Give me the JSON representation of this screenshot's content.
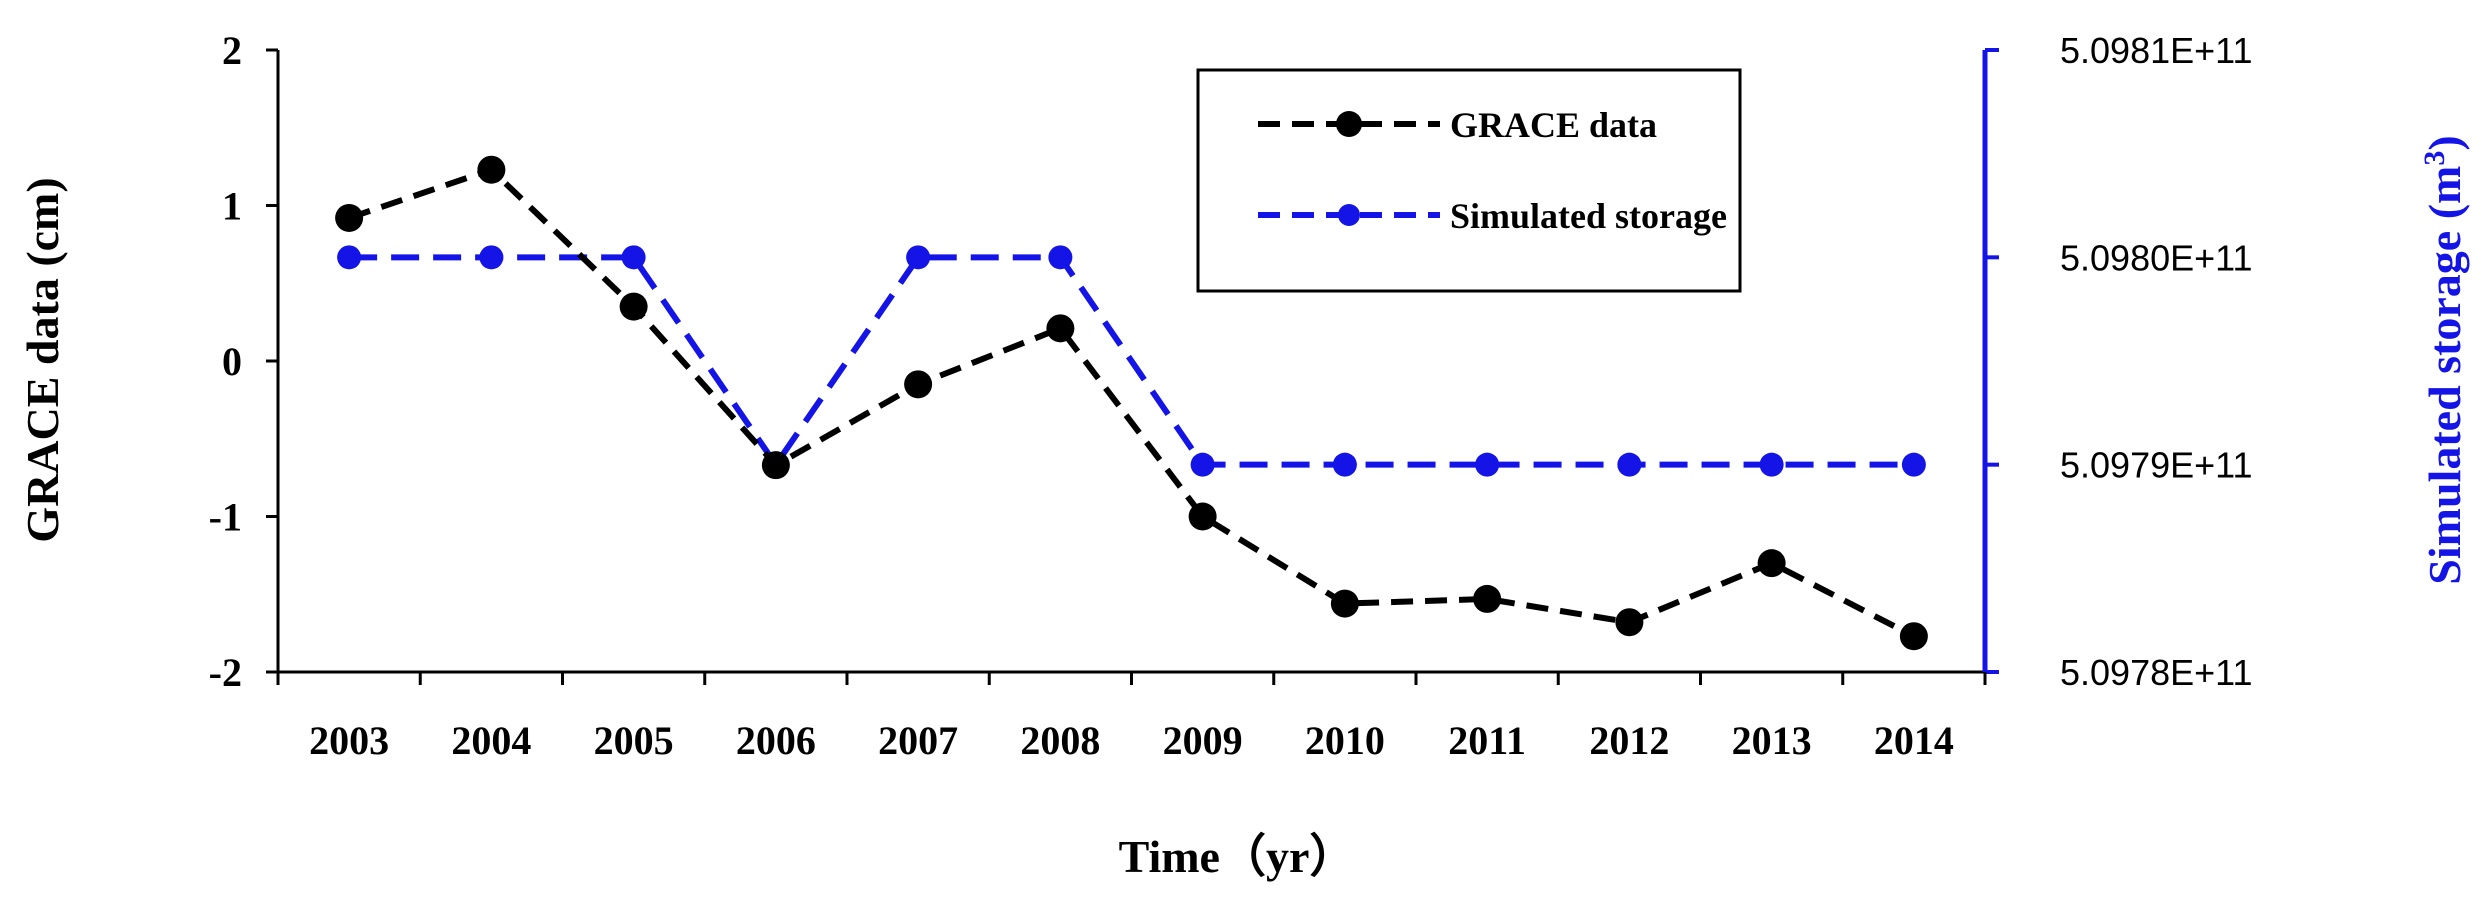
{
  "chart_data": {
    "type": "line",
    "title": "",
    "xlabel": "Time（yr）",
    "ylabel_left": "GRACE data (cm)",
    "ylabel_right_main": "Simulated storage (m",
    "ylabel_right_sup": "3",
    "ylabel_right_close": ")",
    "x": [
      "2003",
      "2004",
      "2005",
      "2006",
      "2007",
      "2008",
      "2009",
      "2010",
      "2011",
      "2012",
      "2013",
      "2014"
    ],
    "y_left": {
      "min": -2,
      "max": 2,
      "ticks": [
        2,
        1,
        0,
        -1,
        -2
      ]
    },
    "y_right": {
      "min": 509780000000,
      "max": 509810000000,
      "ticks": [
        509810000000,
        509800000000,
        509790000000,
        509780000000
      ],
      "tick_labels": [
        "5.0981E+11",
        "5.0980E+11",
        "5.0979E+11",
        "5.0978E+11"
      ]
    },
    "grid": false,
    "legend_position": "top-right",
    "series": [
      {
        "name": "GRACE data",
        "axis": "left",
        "color": "#000000",
        "line_style": "dashed",
        "marker": "circle",
        "values": [
          0.92,
          1.23,
          0.35,
          -0.67,
          -0.15,
          0.21,
          -1.0,
          -1.56,
          -1.53,
          -1.68,
          -1.3,
          -1.77
        ]
      },
      {
        "name": "Simulated storage",
        "axis": "right",
        "color": "#1414e6",
        "line_style": "dashed",
        "marker": "circle",
        "values": [
          509800000000,
          509800000000,
          509800000000,
          509790000000,
          509800000000,
          509800000000,
          509790000000,
          509790000000,
          509790000000,
          509790000000,
          509790000000,
          509790000000
        ]
      }
    ]
  }
}
